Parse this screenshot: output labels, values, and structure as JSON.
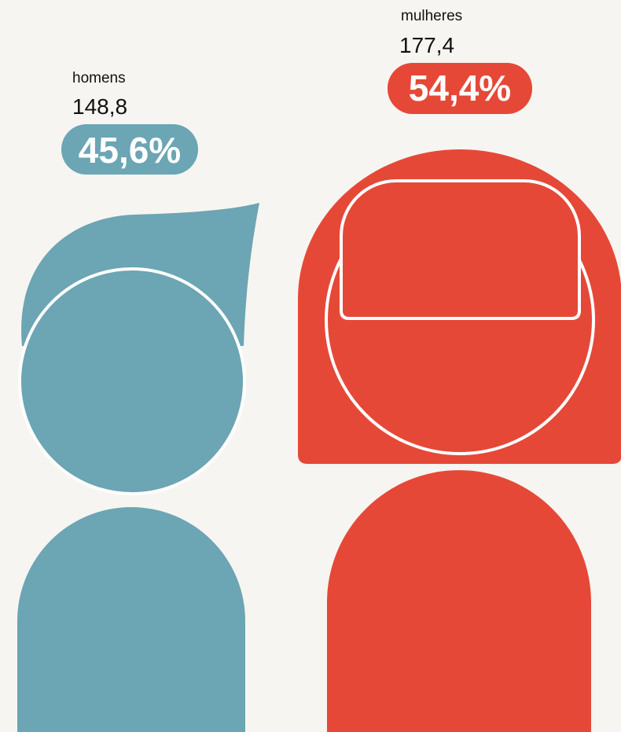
{
  "groups": [
    {
      "label": "homens",
      "value": "148,8",
      "share": "45,6%"
    },
    {
      "label": "mulheres",
      "value": "177,4",
      "share": "54,4%"
    }
  ]
}
